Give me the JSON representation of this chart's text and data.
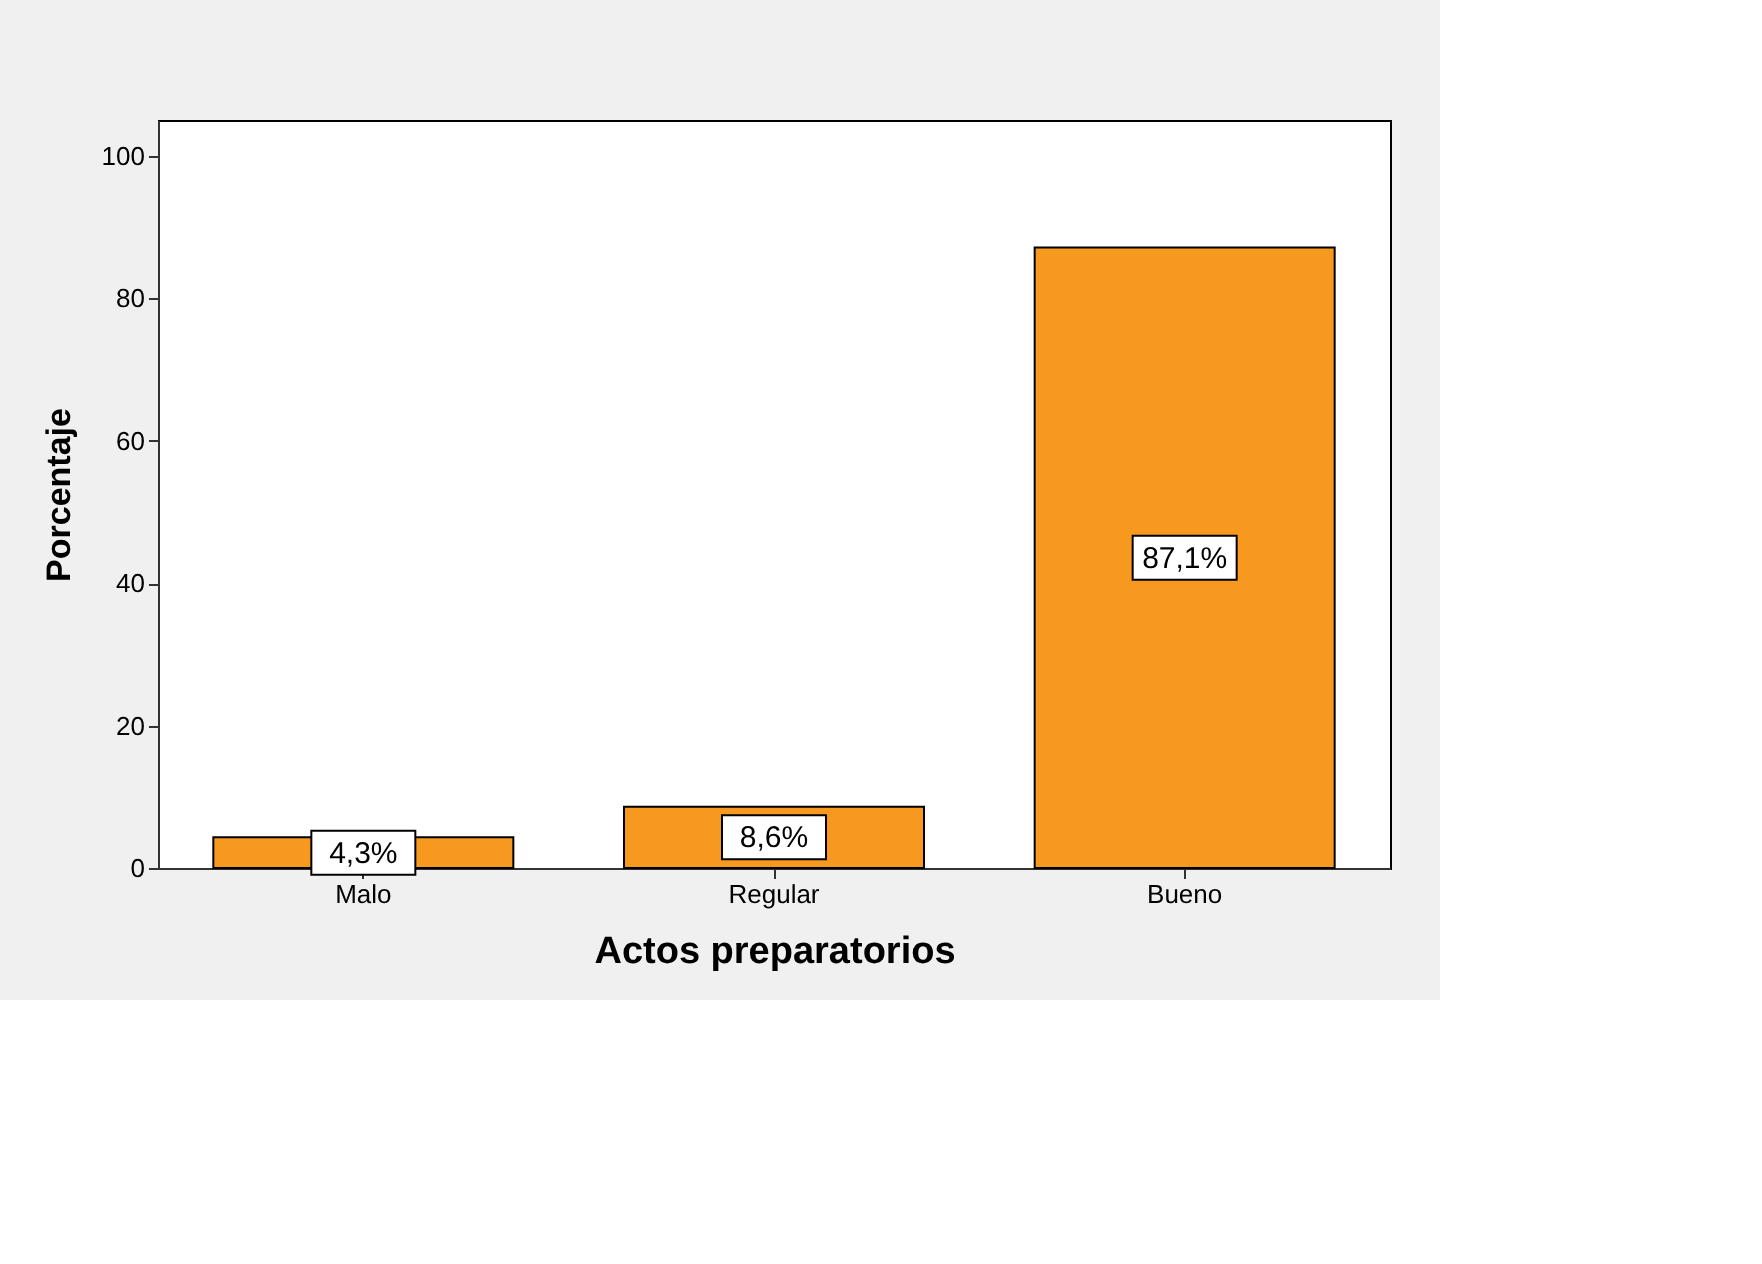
{
  "chart_data": {
    "type": "bar",
    "categories": [
      "Malo",
      "Regular",
      "Bueno"
    ],
    "values": [
      4.3,
      8.6,
      87.1
    ],
    "value_labels": [
      "4,3%",
      "8,6%",
      "87,1%"
    ],
    "color": "#f7991f",
    "xlabel": "Actos preparatorios",
    "ylabel": "Porcentaje",
    "ylim": [
      0,
      105
    ],
    "yticks": [
      0,
      20,
      40,
      60,
      80,
      100
    ],
    "grid": false
  }
}
